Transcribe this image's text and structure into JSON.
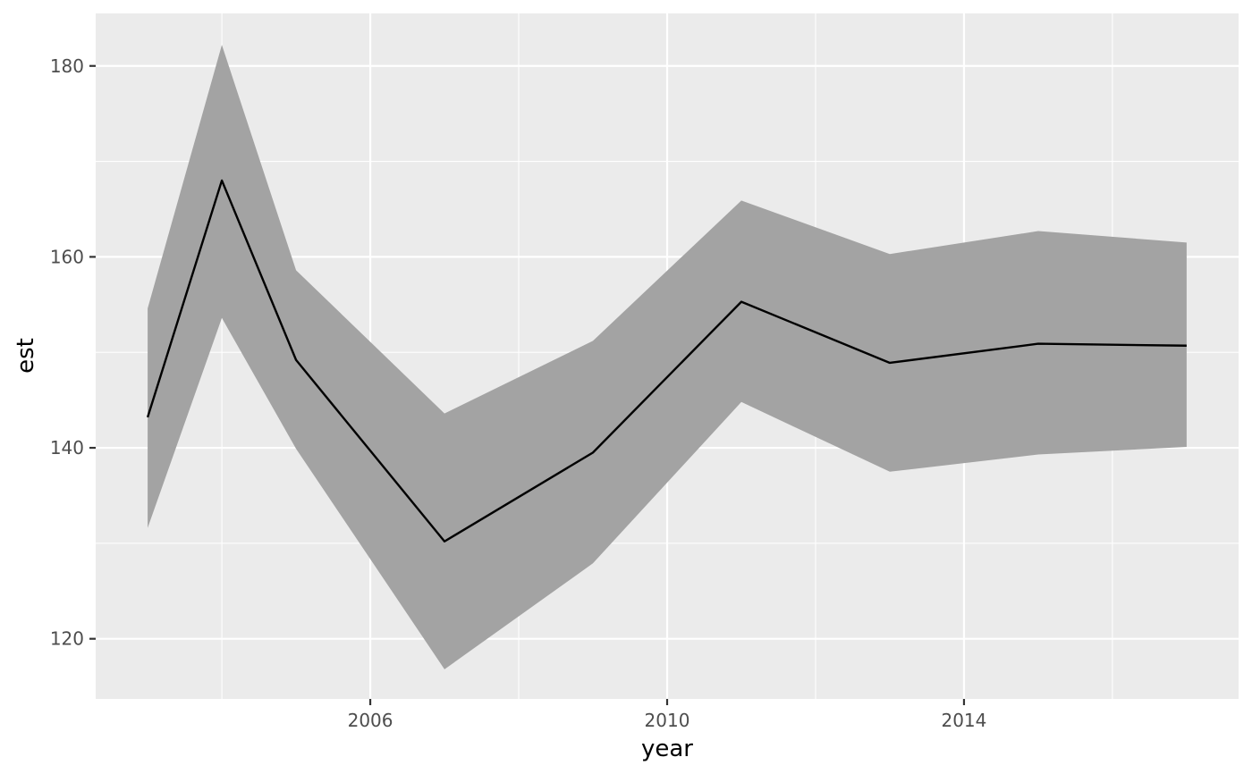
{
  "chart_data": {
    "type": "line",
    "xlabel": "year",
    "ylabel": "est",
    "xlim": [
      2002.3,
      2017.7
    ],
    "ylim": [
      113.7,
      185.5
    ],
    "x_major_ticks": [
      2006,
      2010,
      2014
    ],
    "x_minor_ticks": [
      2004,
      2008,
      2012,
      2016
    ],
    "y_major_ticks": [
      120,
      140,
      160,
      180
    ],
    "y_minor_ticks": [
      130,
      150,
      170
    ],
    "x_tick_labels": [
      "2006",
      "2010",
      "2014"
    ],
    "y_tick_labels": [
      "120",
      "140",
      "160",
      "180"
    ],
    "grid": true,
    "legend": "none",
    "series": [
      {
        "x": [
          2003,
          2004,
          2005,
          2007,
          2009,
          2011,
          2013,
          2015,
          2017
        ],
        "est": [
          143.2,
          168.0,
          149.2,
          130.2,
          139.5,
          155.3,
          148.9,
          150.9,
          150.7
        ],
        "lower": [
          131.6,
          153.6,
          139.9,
          116.8,
          127.9,
          144.8,
          137.5,
          139.3,
          140.1
        ],
        "upper": [
          154.6,
          182.2,
          158.6,
          143.6,
          151.2,
          165.9,
          160.3,
          162.7,
          161.5
        ]
      }
    ],
    "colors": {
      "panel": "#ebebeb",
      "grid": "#ffffff",
      "ribbon": "#a3a3a3",
      "line": "#000000",
      "tick": "#333333"
    }
  }
}
